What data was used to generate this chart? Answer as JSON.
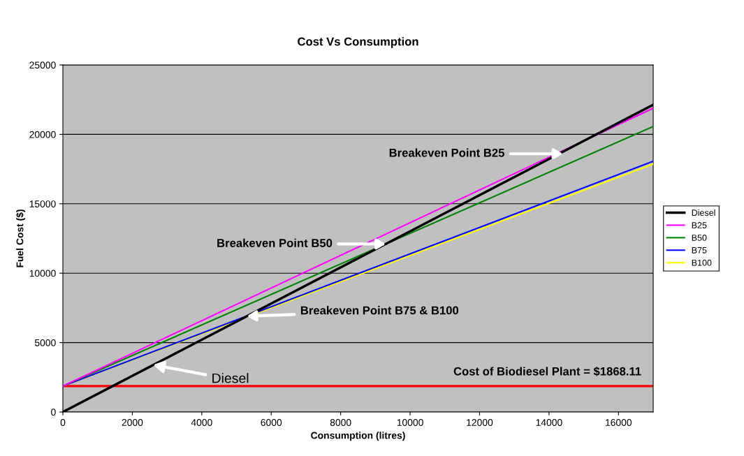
{
  "chart_data": {
    "type": "line",
    "title": "Cost Vs Consumption",
    "xlabel": "Consumption (litres)",
    "ylabel": "Fuel Cost ($)",
    "x": [
      0,
      17000
    ],
    "series": [
      {
        "name": "Diesel",
        "color": "#000000",
        "values": [
          0,
          22130
        ]
      },
      {
        "name": "B25",
        "color": "#ff00ff",
        "values": [
          1870,
          21880
        ]
      },
      {
        "name": "B50",
        "color": "#008000",
        "values": [
          1870,
          20570
        ]
      },
      {
        "name": "B75",
        "color": "#0000ff",
        "values": [
          1870,
          18060
        ]
      },
      {
        "name": "B100",
        "color": "#ffff00",
        "values": [
          1870,
          17860
        ]
      }
    ],
    "xlim": [
      0,
      17000
    ],
    "xticks": [
      0,
      2000,
      4000,
      6000,
      8000,
      10000,
      12000,
      14000,
      16000
    ],
    "ylim": [
      0,
      25000
    ],
    "yticks": [
      0,
      5000,
      10000,
      15000,
      20000,
      25000
    ],
    "ref_lines": [
      {
        "axis": "y",
        "value": 1868.11,
        "label": "Cost of Biodiesel Plant = $1868.11",
        "color": "#ff0000"
      }
    ],
    "annotations": [
      {
        "text": "Breakeven Point B25",
        "x": 14400,
        "y": 18600
      },
      {
        "text": "Breakeven Point B50",
        "x": 9300,
        "y": 12100
      },
      {
        "text": "Breakeven Point B75 & B100",
        "x": 5300,
        "y": 6900
      },
      {
        "text": "Diesel",
        "x": 2600,
        "y": 3400
      }
    ],
    "grid": "y",
    "legend": "right",
    "marker": "none",
    "line_style": "solid"
  }
}
